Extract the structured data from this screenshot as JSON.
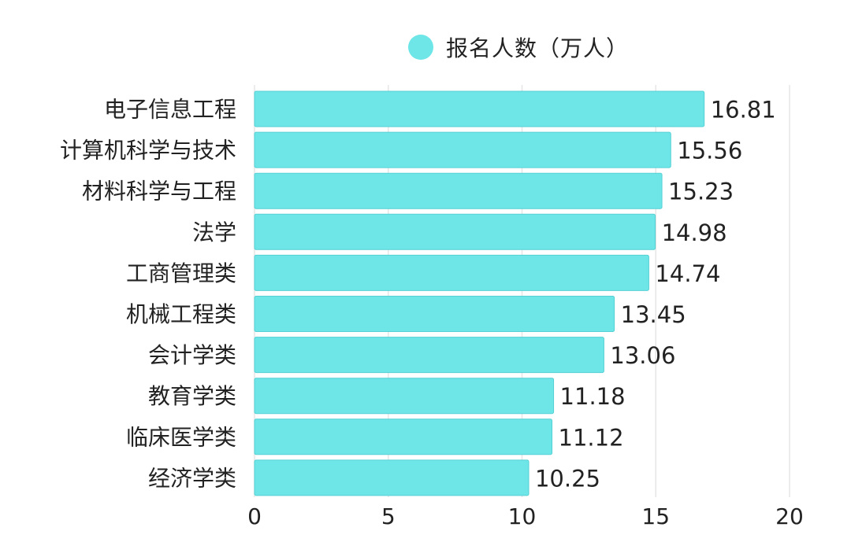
{
  "legend": {
    "label": "报名人数（万人）",
    "color": "#6ee6e8"
  },
  "colors": {
    "bar": "#6ee6e8",
    "bar_stroke": "#55d0d4",
    "grid": "#e6e6e6",
    "text": "#222222"
  },
  "chart_data": {
    "type": "bar",
    "orientation": "horizontal",
    "title": "",
    "xlabel": "",
    "ylabel": "",
    "categories": [
      "电子信息工程",
      "计算机科学与技术",
      "材料科学与工程",
      "法学",
      "工商管理类",
      "机械工程类",
      "会计学类",
      "教育学类",
      "临床医学类",
      "经济学类"
    ],
    "series": [
      {
        "name": "报名人数（万人）",
        "values": [
          16.81,
          15.56,
          15.23,
          14.98,
          14.74,
          13.45,
          13.06,
          11.18,
          11.12,
          10.25
        ]
      }
    ],
    "value_labels": [
      "16.81",
      "15.56",
      "15.23",
      "14.98",
      "14.74",
      "13.45",
      "13.06",
      "11.18",
      "11.12",
      "10.25"
    ],
    "xlim": [
      0,
      20
    ],
    "xticks": [
      0,
      5,
      10,
      15,
      20
    ],
    "xtick_labels": [
      "0",
      "5",
      "10",
      "15",
      "20"
    ],
    "grid": true,
    "legend_position": "top"
  }
}
